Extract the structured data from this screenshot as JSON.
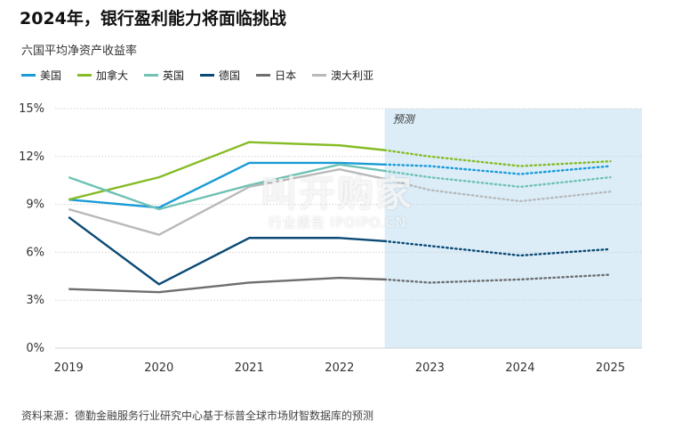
{
  "title": "2024年，银行盈利能力将面临挑战",
  "subtitle": "六国平均净资产收益率",
  "source": "资料来源：德勤金融服务行业研究中心基于标普全球市场财智数据库的预测",
  "watermark": {
    "main": "叫开购家",
    "sub": "行业报告 IPOIPO.CN"
  },
  "chart_data": {
    "type": "line",
    "forecast_label": "预测",
    "forecast_start": 2022.5,
    "x": [
      2019,
      2020,
      2021,
      2022,
      2022.5,
      2023,
      2024,
      2025
    ],
    "x_ticks": [
      "2019",
      "2020",
      "2021",
      "2022",
      "2023",
      "2024",
      "2025"
    ],
    "x_tick_values": [
      2019,
      2020,
      2021,
      2022,
      2023,
      2024,
      2025
    ],
    "y_ticks": [
      "0%",
      "3%",
      "6%",
      "9%",
      "12%",
      "15%"
    ],
    "y_tick_values": [
      0,
      3,
      6,
      9,
      12,
      15
    ],
    "ylim": [
      0,
      15
    ],
    "xlim": [
      2018.85,
      2025.35
    ],
    "grid": true,
    "legend_position": "top-left",
    "series": [
      {
        "name": "美国",
        "color": "#1a9bd7",
        "values": [
          9.3,
          8.8,
          11.6,
          11.6,
          11.5,
          11.4,
          10.9,
          11.4
        ]
      },
      {
        "name": "加拿大",
        "color": "#86bc25",
        "values": [
          9.3,
          10.7,
          12.9,
          12.7,
          12.4,
          12.0,
          11.4,
          11.7
        ]
      },
      {
        "name": "英国",
        "color": "#6fc2b4",
        "values": [
          10.7,
          8.7,
          10.2,
          11.5,
          11.1,
          10.7,
          10.1,
          10.7
        ]
      },
      {
        "name": "德国",
        "color": "#0b4a75",
        "values": [
          8.2,
          4.0,
          6.9,
          6.9,
          6.7,
          6.4,
          5.8,
          6.2
        ]
      },
      {
        "name": "日本",
        "color": "#6d6e70",
        "values": [
          3.7,
          3.5,
          4.1,
          4.4,
          4.3,
          4.1,
          4.3,
          4.6
        ]
      },
      {
        "name": "澳大利亚",
        "color": "#b8b9bb",
        "values": [
          8.7,
          7.1,
          10.1,
          11.2,
          10.6,
          9.9,
          9.2,
          9.8
        ]
      }
    ]
  }
}
